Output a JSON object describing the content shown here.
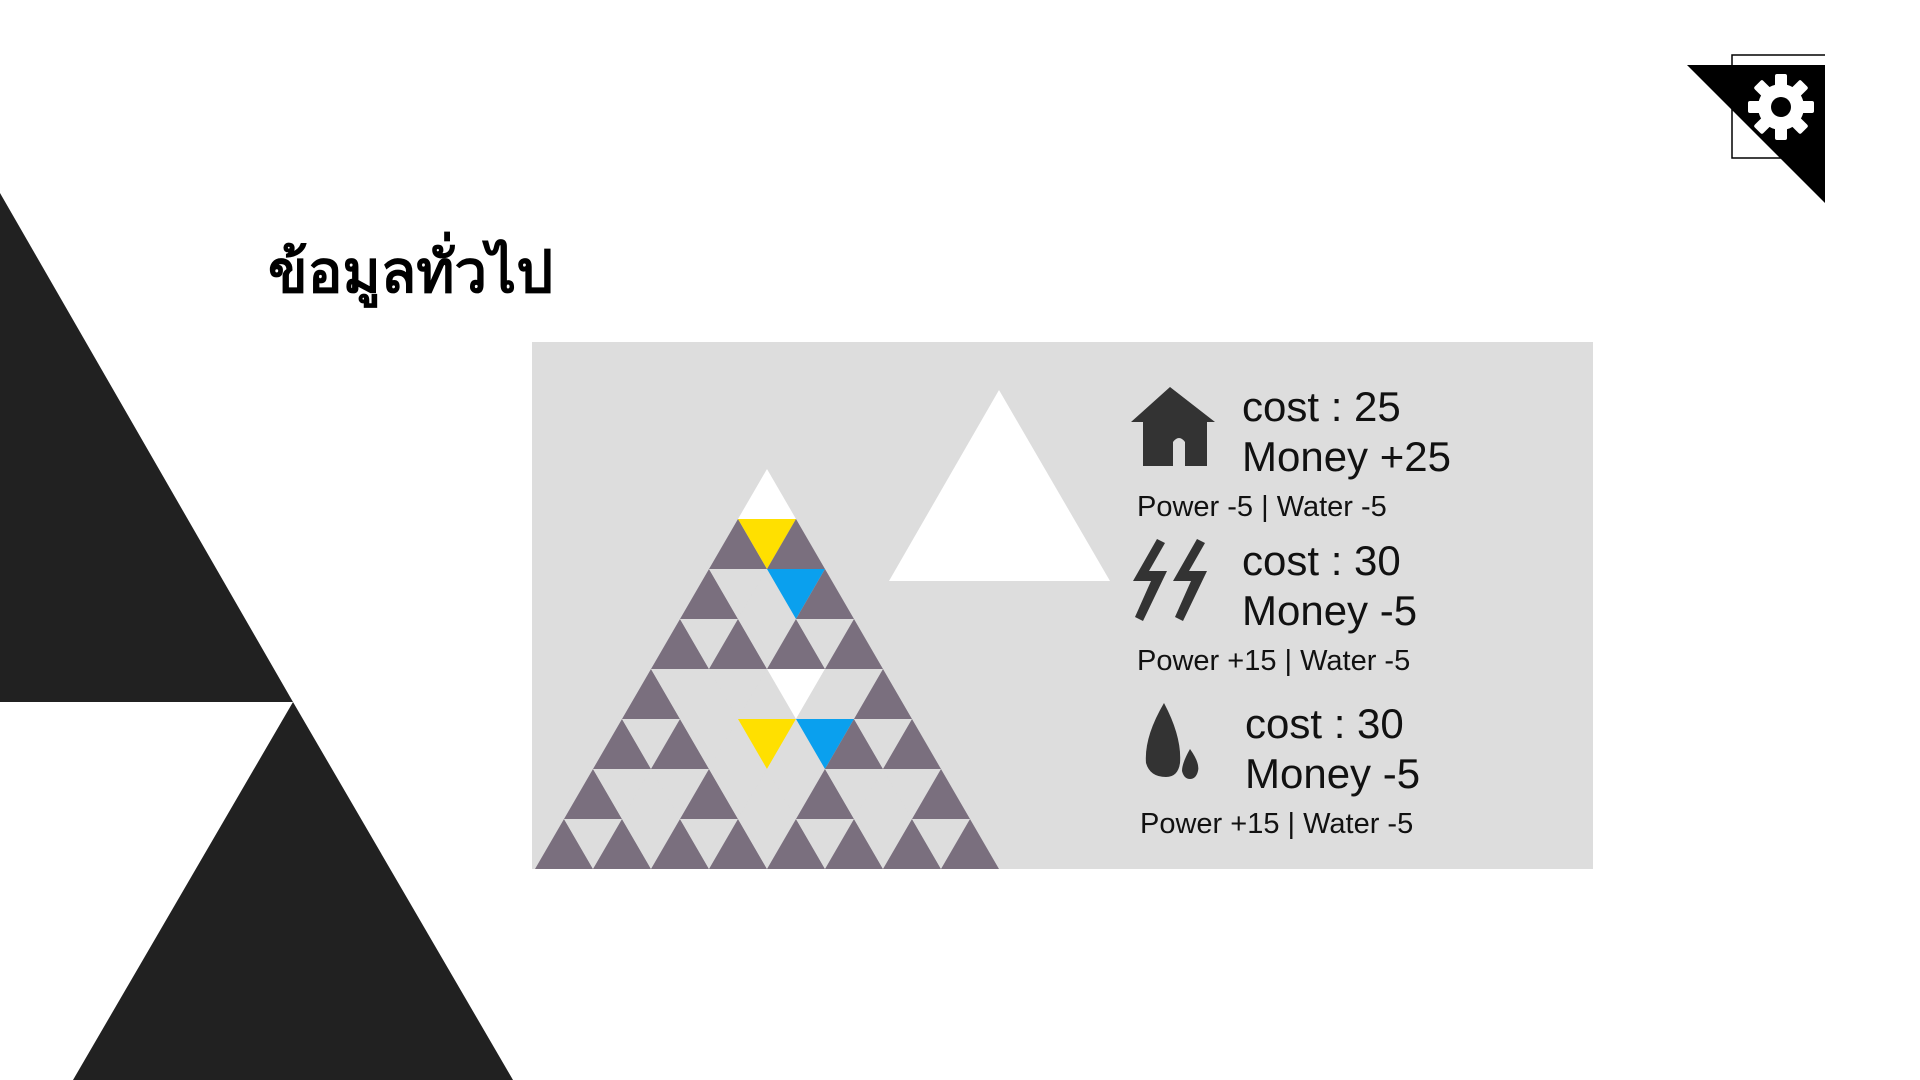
{
  "page": {
    "title": "ข้อมูลทั่วไป"
  },
  "settings": {
    "icon": "gear-icon"
  },
  "buildings": [
    {
      "icon": "house-icon",
      "cost": "cost : 25",
      "money": "Money +25",
      "effects": "Power -5 | Water -5"
    },
    {
      "icon": "lightning-icon",
      "cost": "cost : 30",
      "money": "Money -5",
      "effects": "Power +15 | Water -5"
    },
    {
      "icon": "water-drop-icon",
      "cost": "cost : 30",
      "money": "Money -5",
      "effects": "Power +15 | Water -5"
    }
  ],
  "board": {
    "cell_colors": {
      "empty": "#7a6f7e",
      "hole": "#dddddd",
      "white": "#ffffff",
      "yellow": "#ffe000",
      "blue": "#0aa0ee"
    }
  },
  "colors": {
    "background": "#ffffff",
    "panel": "#dddddd",
    "decor": "#212121",
    "text": "#111111"
  }
}
